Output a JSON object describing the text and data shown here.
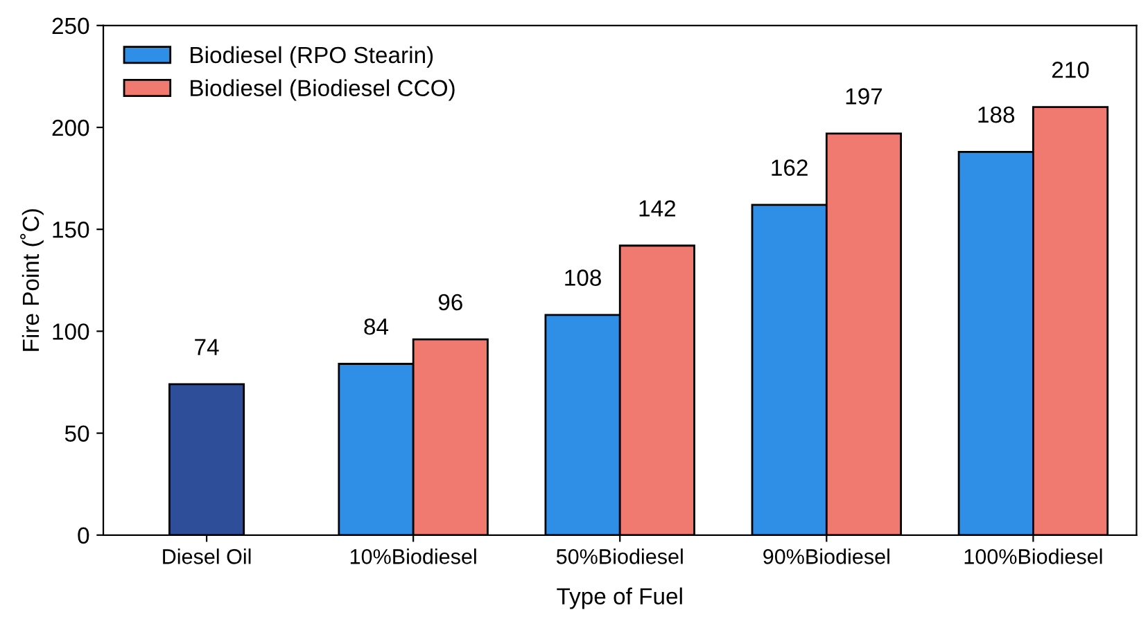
{
  "chart_data": {
    "type": "bar",
    "xlabel": "Type of Fuel",
    "ylabel": "Fire Point (˚C)",
    "categories": [
      "Diesel Oil",
      "10%Biodiesel",
      "50%Biodiesel",
      "90%Biodiesel",
      "100%Biodiesel"
    ],
    "series": [
      {
        "color": "#2e4e9a",
        "values": [
          74,
          null,
          null,
          null,
          null
        ]
      },
      {
        "name": "Biodiesel (RPO Stearin)",
        "color": "#2f8fe6",
        "values": [
          null,
          84,
          108,
          162,
          188
        ]
      },
      {
        "name": "Biodiesel (Biodiesel CCO)",
        "color": "#f07a70",
        "values": [
          null,
          96,
          142,
          197,
          210
        ]
      }
    ],
    "ylim": [
      0,
      250
    ],
    "yticks": [
      0,
      50,
      100,
      150,
      200,
      250
    ],
    "grid": false,
    "legend": "top left",
    "data_labels": true
  }
}
